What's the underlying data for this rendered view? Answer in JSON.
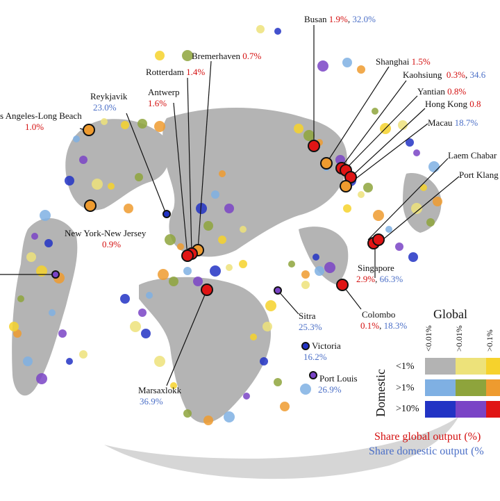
{
  "ports": [
    {
      "name": "Busan",
      "global": "1.9%",
      "domestic": "32.0%"
    },
    {
      "name": "Shanghai",
      "global": "1.5%",
      "domestic": ""
    },
    {
      "name": "Kaohsiung",
      "global": "0.3%",
      "domestic": "34.6"
    },
    {
      "name": "Yantian",
      "global": "0.8%",
      "domestic": ""
    },
    {
      "name": "Hong Kong",
      "global": "0.8",
      "domestic": ""
    },
    {
      "name": "Macau",
      "global": "",
      "domestic": "18.7%"
    },
    {
      "name": "Laem Chabar",
      "global": "",
      "domestic": ""
    },
    {
      "name": "Port Klang",
      "global": "",
      "domestic": ""
    },
    {
      "name": "Bremerhaven",
      "global": "0.7%",
      "domestic": ""
    },
    {
      "name": "Rotterdam",
      "global": "1.4%",
      "domestic": ""
    },
    {
      "name": "Antwerp",
      "global": "1.6%",
      "domestic": ""
    },
    {
      "name": "Reykjavik",
      "global": "",
      "domestic": "23.0%"
    },
    {
      "name": "s Angeles-Long Beach",
      "global": "1.0%",
      "domestic": ""
    },
    {
      "name": "New York-New Jersey",
      "global": "0.9%",
      "domestic": ""
    },
    {
      "name": "Singapore",
      "global": "2.9%",
      "domestic": "66.3%"
    },
    {
      "name": "Colombo",
      "global": "0.1%",
      "domestic": "18.3%"
    },
    {
      "name": "Sitra",
      "global": "",
      "domestic": "25.3%"
    },
    {
      "name": "Victoria",
      "global": "",
      "domestic": "16.2%"
    },
    {
      "name": "Port Louis",
      "global": "",
      "domestic": "26.9%"
    },
    {
      "name": "Marsaxlokk",
      "global": "",
      "domestic": "36.9%"
    }
  ],
  "legend": {
    "title_global": "Global",
    "title_domestic": "Domestic",
    "global_cols": [
      "<0.01%",
      ">0.01%",
      ">0.1%"
    ],
    "domestic_rows": [
      "<1%",
      ">1%",
      ">10%"
    ],
    "colors": [
      [
        "#b3b3b3",
        "#ede27a",
        "#f6d22c"
      ],
      [
        "#7fb0e3",
        "#8ea43c",
        "#ee9b2f"
      ],
      [
        "#2233c4",
        "#7a44c6",
        "#e01515"
      ]
    ],
    "foot_global": "Share global output (%)",
    "foot_domestic": "Share domestic output (%"
  }
}
